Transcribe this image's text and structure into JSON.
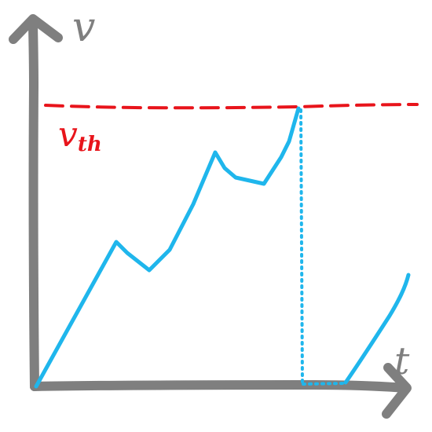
{
  "labels": {
    "y_axis": "v",
    "x_axis": "t",
    "threshold": "v",
    "threshold_subscript": "th"
  },
  "colors": {
    "axes": "#7f7f7f",
    "threshold": "#e8141b",
    "trace": "#1fb6ec",
    "background": "#ffffff"
  }
}
